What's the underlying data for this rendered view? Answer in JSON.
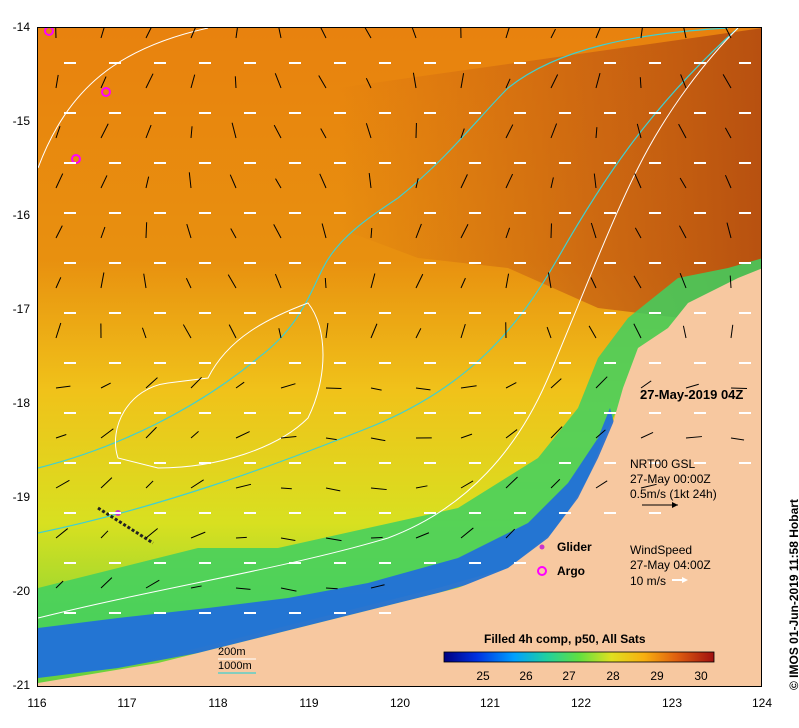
{
  "axes": {
    "x_ticks": [
      "116",
      "117",
      "118",
      "119",
      "120",
      "121",
      "122",
      "123",
      "124"
    ],
    "y_ticks": [
      "-14",
      "-15",
      "-16",
      "-17",
      "-18",
      "-19",
      "-20",
      "-21"
    ]
  },
  "overlay": {
    "timestamp": "27-May-2019 04Z",
    "current": {
      "title": "NRT00 GSL",
      "date": "27-May 00:00Z",
      "scale": "0.5m/s (1kt 24h)"
    },
    "wind": {
      "title": "WindSpeed",
      "date": "27-May 04:00Z",
      "scale": "10 m/s"
    }
  },
  "legend": {
    "glider_label": "Glider",
    "argo_label": "Argo",
    "glider_color": "#cc33cc",
    "argo_color": "#ff00ff"
  },
  "isobaths": {
    "shallow_label": "200m",
    "deep_label": "1000m",
    "shallow_color": "#ffffff",
    "deep_color": "#40d0d0"
  },
  "colorbar": {
    "title": "Filled 4h comp, p50, All Sats",
    "ticks": [
      "25",
      "26",
      "27",
      "28",
      "29",
      "30"
    ]
  },
  "credit": "© IMOS 01-Jun-2019 11:58 Hobart",
  "colors": {
    "land": "#f7c8a0",
    "warm": "#c85a10",
    "cool": "#e8d020",
    "coast_blue": "#2060e0"
  }
}
